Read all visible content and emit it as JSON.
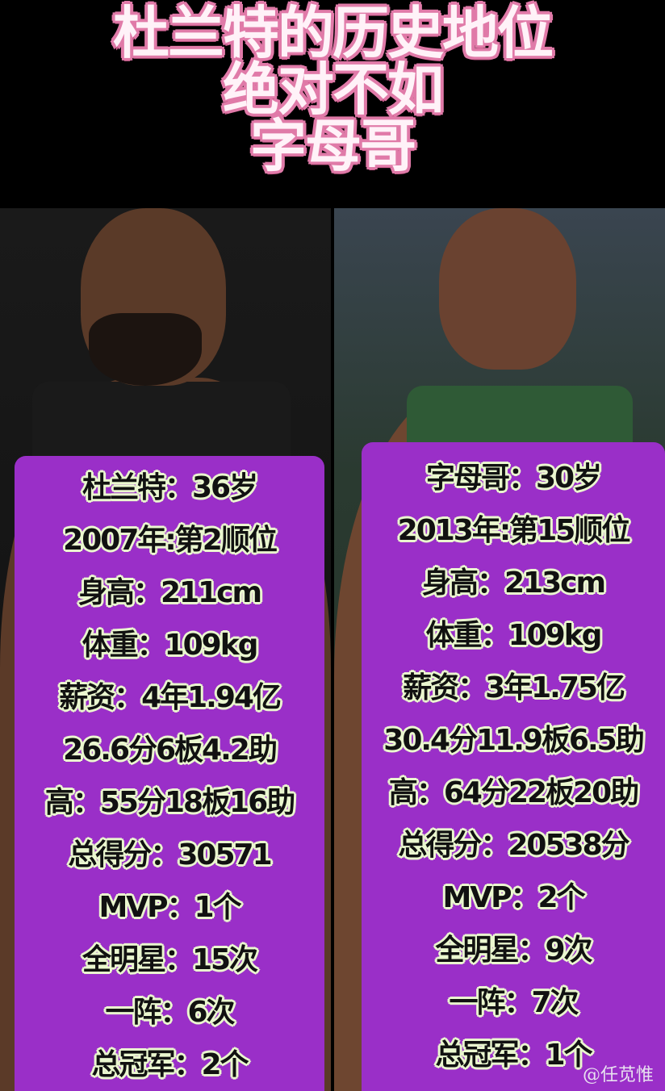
{
  "title": {
    "line1": "杜兰特的历史地位",
    "line2": "绝对不如",
    "line3": "字母哥"
  },
  "colors": {
    "panel": "#9a2fc8",
    "title_fill": "#fff2f8",
    "title_outline": "#e07aa8",
    "stat_outline": "#eaf7cf"
  },
  "left": {
    "rows": [
      "杜兰特：36岁",
      "2007年:第2顺位",
      "身高：211cm",
      "体重：109kg",
      "薪资：4年1.94亿",
      "26.6分6板4.2助",
      "高：55分18板16助",
      "总得分：30571",
      "MVP：1个",
      "全明星：15次",
      "一阵：6次",
      "总冠军：2个"
    ]
  },
  "right": {
    "rows": [
      "字母哥：30岁",
      "2013年:第15顺位",
      "身高：213cm",
      "体重：109kg",
      "薪资：3年1.75亿",
      "30.4分11.9板6.5助",
      "高：64分22板20助",
      "总得分：20538分",
      "MVP：2个",
      "全明星：9次",
      "一阵：7次",
      "总冠军：1个"
    ]
  },
  "watermark": "@任苋惟"
}
